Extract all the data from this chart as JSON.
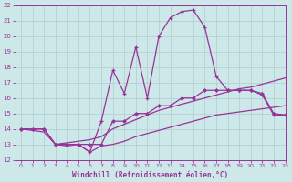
{
  "xlabel": "Windchill (Refroidissement éolien,°C)",
  "xlim": [
    -0.5,
    23
  ],
  "ylim": [
    12,
    22
  ],
  "xticks": [
    0,
    1,
    2,
    3,
    4,
    5,
    6,
    7,
    8,
    9,
    10,
    11,
    12,
    13,
    14,
    15,
    16,
    17,
    18,
    19,
    20,
    21,
    22,
    23
  ],
  "yticks": [
    12,
    13,
    14,
    15,
    16,
    17,
    18,
    19,
    20,
    21,
    22
  ],
  "bg_color": "#cce8e8",
  "grid_color": "#b0cccc",
  "line_color": "#993399",
  "line1_x": [
    0,
    1,
    2,
    3,
    4,
    5,
    6,
    7,
    8,
    9,
    10,
    11,
    12,
    13,
    14,
    15,
    16,
    17,
    18,
    19,
    20,
    21,
    22,
    23
  ],
  "line1_y": [
    14,
    14,
    14,
    13,
    13,
    13,
    12.5,
    14.5,
    17.8,
    16.3,
    19.3,
    16.0,
    20.0,
    21.2,
    21.6,
    21.7,
    20.6,
    17.4,
    16.5,
    16.5,
    16.5,
    16.2,
    14.9,
    14.9
  ],
  "line2_x": [
    0,
    1,
    2,
    3,
    4,
    5,
    6,
    7,
    8,
    9,
    10,
    11,
    12,
    13,
    14,
    15,
    16,
    17,
    18,
    19,
    20,
    21,
    22,
    23
  ],
  "line2_y": [
    14,
    14,
    14,
    13,
    13,
    13,
    13.0,
    13.0,
    14.5,
    14.5,
    15.0,
    15.0,
    15.5,
    15.5,
    16.0,
    16.0,
    16.5,
    16.5,
    16.5,
    16.5,
    16.5,
    16.3,
    15.0,
    14.9
  ],
  "line3_x": [
    0,
    1,
    2,
    3,
    4,
    5,
    6,
    7,
    8,
    9,
    10,
    11,
    12,
    13,
    14,
    15,
    16,
    17,
    18,
    19,
    20,
    21,
    22,
    23
  ],
  "line3_y": [
    14,
    14,
    14,
    13.0,
    13.1,
    13.2,
    13.3,
    13.5,
    14.0,
    14.3,
    14.6,
    14.9,
    15.2,
    15.4,
    15.6,
    15.8,
    16.0,
    16.2,
    16.4,
    16.6,
    16.7,
    16.9,
    17.1,
    17.3
  ],
  "line4_x": [
    0,
    1,
    2,
    3,
    4,
    5,
    6,
    7,
    8,
    9,
    10,
    11,
    12,
    13,
    14,
    15,
    16,
    17,
    18,
    19,
    20,
    21,
    22,
    23
  ],
  "line4_y": [
    14,
    13.9,
    13.8,
    13.0,
    12.9,
    13.0,
    12.5,
    12.9,
    13.0,
    13.2,
    13.5,
    13.7,
    13.9,
    14.1,
    14.3,
    14.5,
    14.7,
    14.9,
    15.0,
    15.1,
    15.2,
    15.3,
    15.4,
    15.5
  ]
}
